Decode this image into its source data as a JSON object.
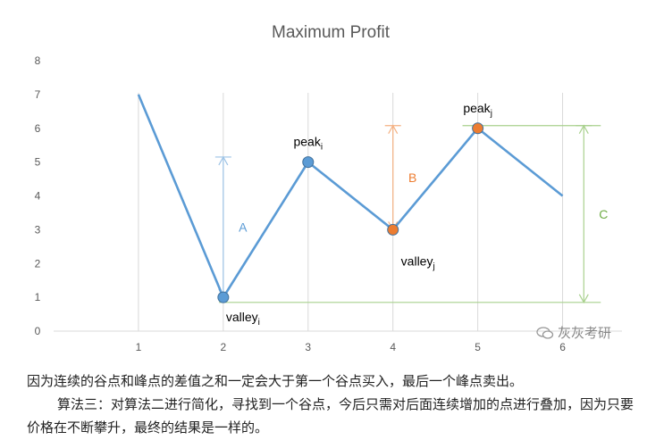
{
  "chart_data": {
    "type": "line",
    "title": "Maximum Profit",
    "x": [
      1,
      2,
      3,
      4,
      5,
      6
    ],
    "series": [
      {
        "values": [
          7,
          1,
          5,
          3,
          6,
          4
        ],
        "color": "#5b9bd5"
      }
    ],
    "xlim": [
      0,
      6.7
    ],
    "ylim": [
      0,
      8
    ],
    "yticks": [
      0,
      1,
      2,
      3,
      4,
      5,
      6,
      7,
      8
    ],
    "xticks": [
      1,
      2,
      3,
      4,
      5,
      6
    ],
    "grid": "vertical",
    "points": [
      {
        "x": 2,
        "y": 1,
        "base": "valley",
        "sub": "i",
        "color": "#5b9bd5",
        "label_pos": "below"
      },
      {
        "x": 3,
        "y": 5,
        "base": "peak",
        "sub": "i",
        "color": "#5b9bd5",
        "label_pos": "above"
      },
      {
        "x": 4,
        "y": 3,
        "base": "valley",
        "sub": "j",
        "color": "#ed7d31",
        "label_pos": "below-right"
      },
      {
        "x": 5,
        "y": 6,
        "base": "peak",
        "sub": "j",
        "color": "#ed7d31",
        "label_pos": "above"
      }
    ],
    "annotations": [
      {
        "label": "A",
        "x": 2,
        "from": 1,
        "to": 5.15,
        "color": "#9dc3e6"
      },
      {
        "label": "B",
        "x": 4,
        "from": 3,
        "to": 6.08,
        "color": "#f4b183"
      },
      {
        "label": "C",
        "x": 6.25,
        "from": 0.85,
        "to": 6.08,
        "color": "#a9d18e"
      }
    ],
    "hlines": [
      {
        "y": 0.85,
        "color": "#a9d18e"
      },
      {
        "y": 6.08,
        "color": "#a9d18e"
      }
    ]
  },
  "watermark": "灰灰考研",
  "captions": [
    "因为连续的谷点和峰点的差值之和一定会大于第一个谷点买入，最后一个峰点卖出。",
    "算法三：对算法二进行简化，寻找到一个谷点，今后只需对后面连续增加的点进行叠加，因为只要价格在不断攀升，最终的结果是一样的。"
  ]
}
